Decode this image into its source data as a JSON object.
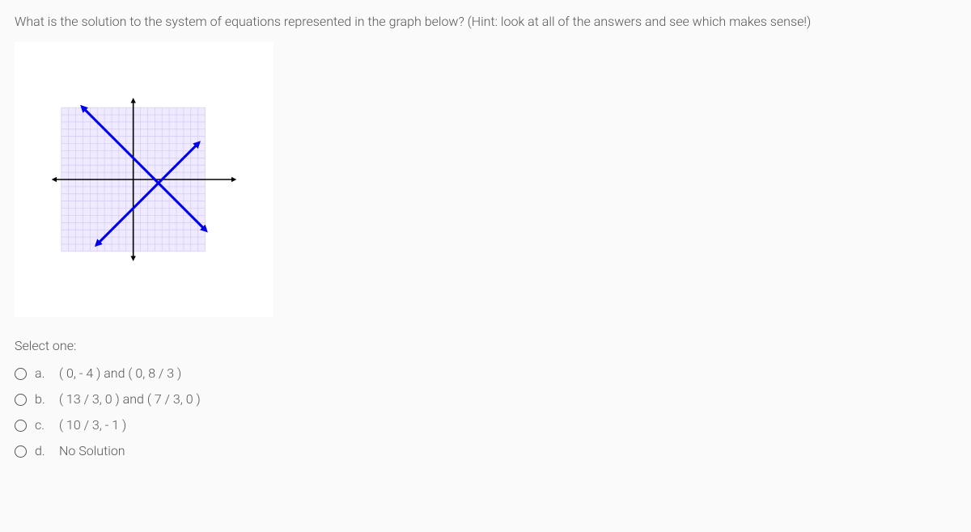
{
  "question": {
    "text": "What is the solution to the system of equations represented in the graph below? (Hint: look at all of the answers and see which makes sense!)"
  },
  "select_label": "Select one:",
  "options": [
    {
      "letter": "a.",
      "text": "( 0, - 4 ) and ( 0, 8 / 3 )"
    },
    {
      "letter": "b.",
      "text": "( 13 / 3, 0 ) and ( 7 / 3, 0 )"
    },
    {
      "letter": "c.",
      "text": "( 10 / 3, - 1 )"
    },
    {
      "letter": "d.",
      "text": "No Solution"
    }
  ],
  "graph": {
    "type": "line",
    "background_color": "#ffffff",
    "grid_color": "#d4cdf0",
    "grid_fill": "#efeaff",
    "axis_color": "#000000",
    "axis_width": 2,
    "line_color": "#0000ee",
    "line_width": 3,
    "grid_extent": 10,
    "xlim": [
      -10,
      10
    ],
    "ylim": [
      -10,
      10
    ],
    "axis_y_range": [
      -11,
      11
    ],
    "axis_x_range": [
      -11,
      14
    ],
    "lines": [
      {
        "x1": -7,
        "y1": 10,
        "x2": 10,
        "y2": -7
      },
      {
        "x1": -5,
        "y1": -9,
        "x2": 9,
        "y2": 5
      }
    ],
    "arrow_size": 5
  }
}
